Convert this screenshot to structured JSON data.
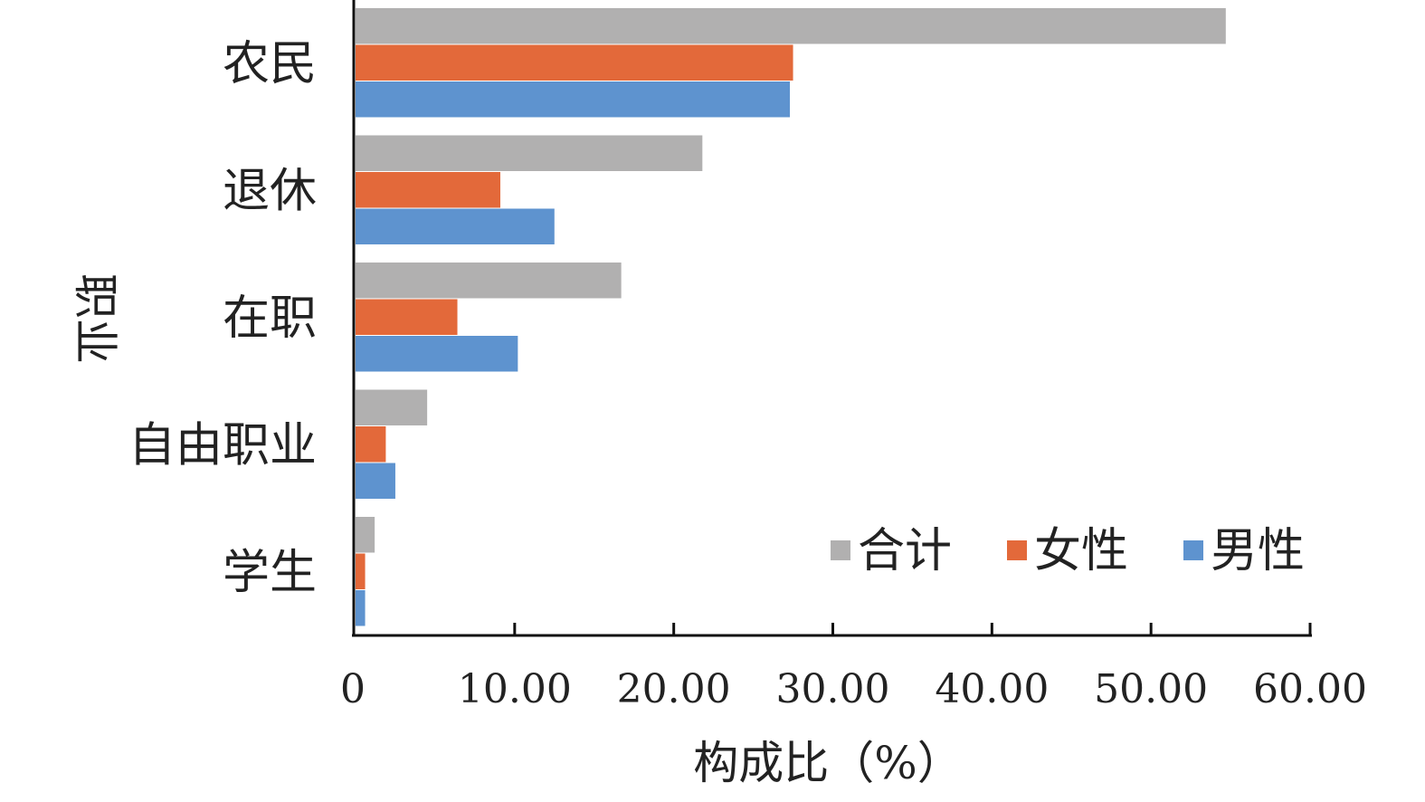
{
  "chart_data": {
    "type": "bar",
    "orientation": "horizontal",
    "categories": [
      "农民",
      "退休",
      "在职",
      "自由职业",
      "学生"
    ],
    "series": [
      {
        "name": "合计",
        "values": [
          54.7,
          21.8,
          16.7,
          4.5,
          1.2
        ],
        "color": "#b1b0b0"
      },
      {
        "name": "女性",
        "values": [
          27.5,
          9.1,
          6.4,
          1.9,
          0.6
        ],
        "color": "#e3693a"
      },
      {
        "name": "男性",
        "values": [
          27.3,
          12.5,
          10.2,
          2.5,
          0.6
        ],
        "color": "#5e93cf"
      }
    ],
    "x_ticks": [
      "0",
      "10.00",
      "20.00",
      "30.00",
      "40.00",
      "50.00",
      "60.00"
    ],
    "xlim": [
      0,
      60
    ],
    "xlabel": "构成比（%）",
    "ylabel": "职业",
    "legend_position": "bottom-right",
    "grid": false
  }
}
